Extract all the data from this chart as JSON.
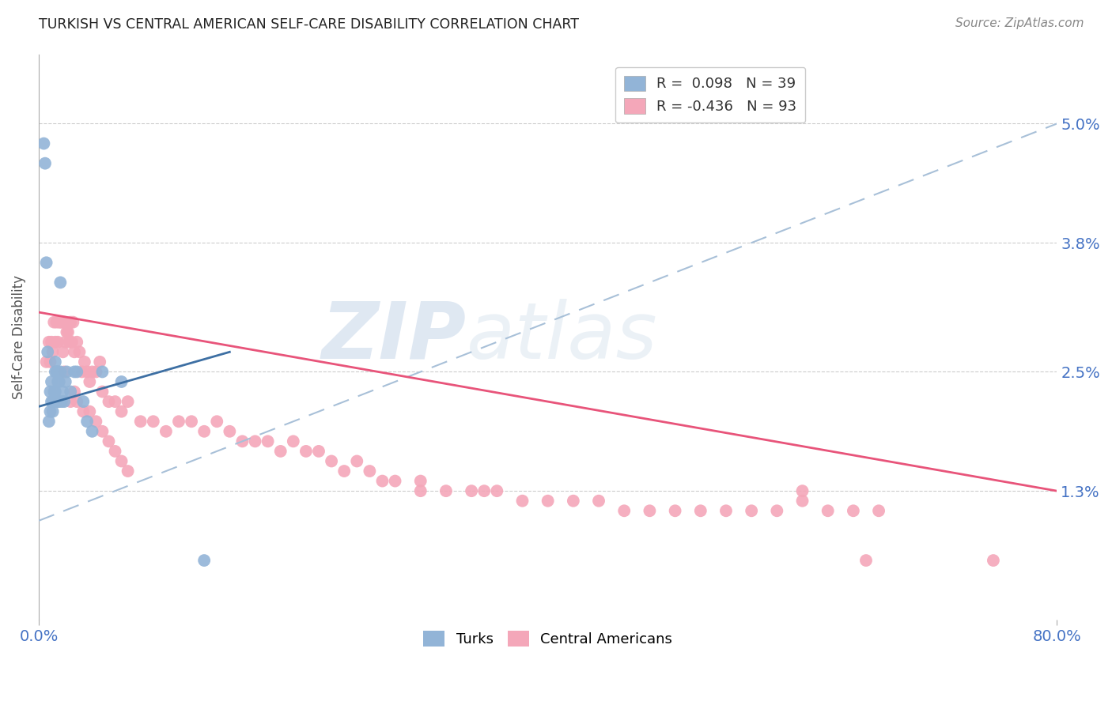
{
  "title": "TURKISH VS CENTRAL AMERICAN SELF-CARE DISABILITY CORRELATION CHART",
  "source": "Source: ZipAtlas.com",
  "ylabel": "Self-Care Disability",
  "turks_label": "Turks",
  "central_label": "Central Americans",
  "legend_line1": "R =  0.098   N = 39",
  "legend_line2": "R = -0.436   N = 93",
  "xmin": 0.0,
  "xmax": 0.8,
  "ymin": 0.0,
  "ymax": 0.057,
  "yticks": [
    0.013,
    0.025,
    0.038,
    0.05
  ],
  "ytick_labels": [
    "1.3%",
    "2.5%",
    "3.8%",
    "5.0%"
  ],
  "xtick_vals": [
    0.0,
    0.8
  ],
  "xtick_labels": [
    "0.0%",
    "80.0%"
  ],
  "turk_color": "#92b4d7",
  "central_color": "#f4a7b9",
  "turk_trend_color": "#3d6fa3",
  "central_trend_color": "#e8547a",
  "dashed_trend_color": "#a8c0d8",
  "watermark": "ZIPatlas",
  "background_color": "#ffffff",
  "grid_color": "#cccccc",
  "title_color": "#222222",
  "ylabel_color": "#555555",
  "tick_label_color": "#4472c4",
  "source_color": "#888888",
  "turks_x": [
    0.004,
    0.005,
    0.006,
    0.007,
    0.008,
    0.009,
    0.009,
    0.01,
    0.01,
    0.011,
    0.011,
    0.012,
    0.012,
    0.013,
    0.013,
    0.013,
    0.014,
    0.014,
    0.015,
    0.015,
    0.015,
    0.016,
    0.016,
    0.017,
    0.017,
    0.018,
    0.019,
    0.02,
    0.021,
    0.022,
    0.025,
    0.028,
    0.03,
    0.035,
    0.038,
    0.042,
    0.05,
    0.065,
    0.13
  ],
  "turks_y": [
    0.048,
    0.046,
    0.036,
    0.027,
    0.02,
    0.023,
    0.021,
    0.024,
    0.022,
    0.022,
    0.021,
    0.023,
    0.022,
    0.026,
    0.025,
    0.023,
    0.025,
    0.022,
    0.025,
    0.024,
    0.022,
    0.024,
    0.022,
    0.034,
    0.025,
    0.022,
    0.023,
    0.022,
    0.024,
    0.025,
    0.023,
    0.025,
    0.025,
    0.022,
    0.02,
    0.019,
    0.025,
    0.024,
    0.006
  ],
  "central_x": [
    0.006,
    0.008,
    0.009,
    0.01,
    0.011,
    0.012,
    0.013,
    0.014,
    0.015,
    0.016,
    0.017,
    0.018,
    0.019,
    0.02,
    0.021,
    0.022,
    0.023,
    0.024,
    0.025,
    0.026,
    0.027,
    0.028,
    0.03,
    0.032,
    0.034,
    0.036,
    0.038,
    0.04,
    0.042,
    0.045,
    0.048,
    0.05,
    0.055,
    0.06,
    0.065,
    0.07,
    0.08,
    0.09,
    0.1,
    0.11,
    0.12,
    0.13,
    0.14,
    0.15,
    0.16,
    0.17,
    0.18,
    0.19,
    0.2,
    0.21,
    0.22,
    0.23,
    0.24,
    0.25,
    0.26,
    0.27,
    0.28,
    0.3,
    0.32,
    0.34,
    0.36,
    0.38,
    0.4,
    0.42,
    0.44,
    0.46,
    0.48,
    0.5,
    0.52,
    0.54,
    0.56,
    0.58,
    0.6,
    0.62,
    0.64,
    0.66,
    0.02,
    0.025,
    0.028,
    0.03,
    0.035,
    0.04,
    0.045,
    0.05,
    0.055,
    0.06,
    0.065,
    0.07,
    0.3,
    0.35,
    0.6,
    0.65,
    0.75
  ],
  "central_y": [
    0.026,
    0.028,
    0.026,
    0.028,
    0.027,
    0.03,
    0.028,
    0.03,
    0.028,
    0.03,
    0.03,
    0.03,
    0.027,
    0.03,
    0.028,
    0.029,
    0.029,
    0.028,
    0.03,
    0.028,
    0.03,
    0.027,
    0.028,
    0.027,
    0.025,
    0.026,
    0.025,
    0.024,
    0.025,
    0.025,
    0.026,
    0.023,
    0.022,
    0.022,
    0.021,
    0.022,
    0.02,
    0.02,
    0.019,
    0.02,
    0.02,
    0.019,
    0.02,
    0.019,
    0.018,
    0.018,
    0.018,
    0.017,
    0.018,
    0.017,
    0.017,
    0.016,
    0.015,
    0.016,
    0.015,
    0.014,
    0.014,
    0.014,
    0.013,
    0.013,
    0.013,
    0.012,
    0.012,
    0.012,
    0.012,
    0.011,
    0.011,
    0.011,
    0.011,
    0.011,
    0.011,
    0.011,
    0.012,
    0.011,
    0.011,
    0.011,
    0.025,
    0.022,
    0.023,
    0.022,
    0.021,
    0.021,
    0.02,
    0.019,
    0.018,
    0.017,
    0.016,
    0.015,
    0.013,
    0.013,
    0.013,
    0.006,
    0.006
  ],
  "turk_trend_x0": 0.0,
  "turk_trend_y0": 0.0215,
  "turk_trend_x1": 0.15,
  "turk_trend_y1": 0.027,
  "central_trend_x0": 0.0,
  "central_trend_y0": 0.031,
  "central_trend_x1": 0.8,
  "central_trend_y1": 0.013,
  "dashed_trend_x0": 0.0,
  "dashed_trend_y0": 0.01,
  "dashed_trend_x1": 0.8,
  "dashed_trend_y1": 0.05
}
